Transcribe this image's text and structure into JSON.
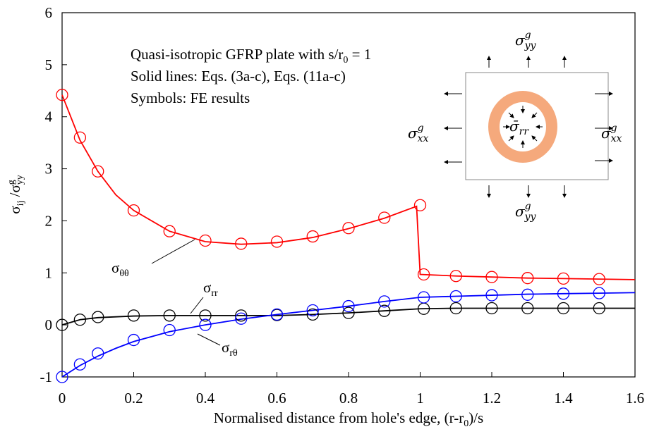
{
  "chart_data": {
    "type": "line",
    "xlabel": [
      "Normalised distance from hole's edge, (r-r",
      "0",
      ")/s"
    ],
    "ylabel": [
      "σ",
      "ij",
      " /σ",
      "g",
      "yy"
    ],
    "note": [
      [
        "Quasi-isotropic GFRP plate with s/r",
        "0",
        " = 1"
      ],
      [
        "Solid lines: Eqs. (3a-c), Eqs. (11a-c)"
      ],
      [
        "Symbols: FE results"
      ]
    ],
    "xlim": [
      0,
      1.6
    ],
    "xticks": [
      0,
      0.2,
      0.4,
      0.6,
      0.8,
      1,
      1.2,
      1.4,
      1.6
    ],
    "ylim": [
      -1,
      6
    ],
    "yticks": [
      -1,
      0,
      1,
      2,
      3,
      4,
      5,
      6
    ],
    "series": [
      {
        "label": {
          "base": "σ",
          "sub": "θθ"
        },
        "style": "line",
        "color": "#ff0000",
        "x": [
          0,
          0.05,
          0.1,
          0.15,
          0.2,
          0.3,
          0.4,
          0.5,
          0.6,
          0.7,
          0.8,
          0.9,
          0.99,
          1.0,
          1.1,
          1.2,
          1.3,
          1.4,
          1.5,
          1.6
        ],
        "values": [
          4.42,
          3.55,
          2.95,
          2.5,
          2.2,
          1.8,
          1.6,
          1.55,
          1.58,
          1.68,
          1.85,
          2.05,
          2.28,
          0.97,
          0.94,
          0.92,
          0.9,
          0.89,
          0.88,
          0.87
        ]
      },
      {
        "label": {
          "base": "σ",
          "sub": "rr"
        },
        "style": "line",
        "color": "#000000",
        "x": [
          0,
          0.05,
          0.1,
          0.2,
          0.3,
          0.4,
          0.5,
          0.6,
          0.7,
          0.8,
          0.9,
          1.0,
          1.1,
          1.2,
          1.3,
          1.4,
          1.5,
          1.6
        ],
        "values": [
          0,
          0.1,
          0.14,
          0.17,
          0.18,
          0.18,
          0.18,
          0.18,
          0.2,
          0.23,
          0.27,
          0.31,
          0.32,
          0.32,
          0.32,
          0.32,
          0.32,
          0.32
        ]
      },
      {
        "label": {
          "base": "σ",
          "sub": "rθ"
        },
        "style": "line",
        "color": "#0000ff",
        "x": [
          0,
          0.05,
          0.1,
          0.15,
          0.2,
          0.3,
          0.4,
          0.5,
          0.6,
          0.7,
          0.8,
          0.9,
          1.0,
          1.1,
          1.2,
          1.3,
          1.4,
          1.5,
          1.6
        ],
        "values": [
          -1,
          -0.78,
          -0.6,
          -0.45,
          -0.32,
          -0.13,
          0,
          0.11,
          0.2,
          0.28,
          0.36,
          0.45,
          0.53,
          0.55,
          0.57,
          0.59,
          0.6,
          0.61,
          0.62
        ]
      },
      {
        "style": "marker",
        "color": "#ff0000",
        "x": [
          0,
          0.05,
          0.1,
          0.2,
          0.3,
          0.4,
          0.5,
          0.6,
          0.7,
          0.8,
          0.9,
          1.0,
          1.01,
          1.1,
          1.2,
          1.3,
          1.4,
          1.5
        ],
        "values": [
          4.42,
          3.6,
          2.95,
          2.2,
          1.8,
          1.62,
          1.56,
          1.6,
          1.7,
          1.86,
          2.06,
          2.3,
          0.97,
          0.94,
          0.92,
          0.9,
          0.89,
          0.88
        ]
      },
      {
        "style": "marker",
        "color": "#000000",
        "x": [
          0,
          0.05,
          0.1,
          0.2,
          0.3,
          0.4,
          0.5,
          0.6,
          0.7,
          0.8,
          0.9,
          1.01,
          1.1,
          1.2,
          1.3,
          1.4,
          1.5
        ],
        "values": [
          0,
          0.1,
          0.15,
          0.18,
          0.18,
          0.18,
          0.18,
          0.19,
          0.2,
          0.23,
          0.27,
          0.31,
          0.32,
          0.32,
          0.32,
          0.32,
          0.32
        ]
      },
      {
        "style": "marker",
        "color": "#0000ff",
        "x": [
          0,
          0.05,
          0.1,
          0.2,
          0.3,
          0.4,
          0.5,
          0.6,
          0.7,
          0.8,
          0.9,
          1.01,
          1.1,
          1.2,
          1.3,
          1.4,
          1.5
        ],
        "values": [
          -1,
          -0.76,
          -0.55,
          -0.29,
          -0.1,
          0,
          0.12,
          0.2,
          0.28,
          0.36,
          0.45,
          0.53,
          0.55,
          0.57,
          0.58,
          0.6,
          0.61
        ]
      }
    ],
    "inset": {
      "top": {
        "base": "σ",
        "sup": "g",
        "sub": "yy"
      },
      "bottom": {
        "base": "σ",
        "sup": "g",
        "sub": "yy"
      },
      "left": {
        "base": "σ",
        "sup": "g",
        "sub": "xx"
      },
      "right": {
        "base": "σ",
        "sup": "g",
        "sub": "xx"
      },
      "center": {
        "base": "σ̄",
        "sub": "rr"
      }
    }
  }
}
